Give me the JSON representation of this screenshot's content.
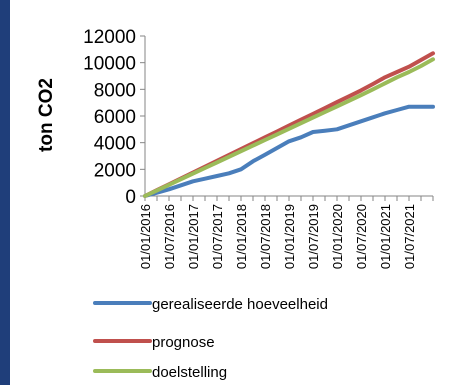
{
  "chart_data": {
    "type": "line",
    "title": "",
    "ylabel": "ton CO2",
    "xlabel": "",
    "ylim": [
      0,
      12000
    ],
    "yticks": [
      "0",
      "2000",
      "4000",
      "6000",
      "8000",
      "10000",
      "12000"
    ],
    "x_tick_labels": [
      "01/01/2016",
      "01/07/2016",
      "01/01/2017",
      "01/07/2017",
      "01/01/2018",
      "01/07/2018",
      "01/01/2019",
      "01/07/2019",
      "01/01/2020",
      "01/07/2020",
      "01/01/2021",
      "01/07/2021"
    ],
    "x": [
      "01/01/2016",
      "01/04/2016",
      "01/07/2016",
      "01/10/2016",
      "01/01/2017",
      "01/04/2017",
      "01/07/2017",
      "01/10/2017",
      "01/01/2018",
      "01/04/2018",
      "01/07/2018",
      "01/10/2018",
      "01/01/2019",
      "01/04/2019",
      "01/07/2019",
      "01/10/2019",
      "01/01/2020",
      "01/04/2020",
      "01/07/2020",
      "01/10/2020",
      "01/01/2021",
      "01/04/2021",
      "01/07/2021",
      "01/10/2021",
      "01/01/2022"
    ],
    "grid": false,
    "legend_position": "bottom",
    "series": [
      {
        "name": "gerealiseerde hoeveelheid",
        "color": "#4a7ebb",
        "values": [
          0,
          250,
          500,
          800,
          1100,
          1300,
          1500,
          1700,
          2000,
          2600,
          3100,
          3600,
          4100,
          4400,
          4800,
          4900,
          5000,
          5300,
          5600,
          5900,
          6200,
          6450,
          6700,
          6700,
          6700
        ]
      },
      {
        "name": "prognose",
        "color": "#c0504d",
        "values": [
          0,
          440,
          880,
          1320,
          1760,
          2200,
          2640,
          3080,
          3520,
          3960,
          4400,
          4840,
          5280,
          5720,
          6160,
          6600,
          7040,
          7480,
          7920,
          8400,
          8900,
          9300,
          9700,
          10200,
          10700
        ]
      },
      {
        "name": "doelstelling",
        "color": "#9bbb59",
        "values": [
          0,
          420,
          840,
          1260,
          1680,
          2100,
          2520,
          2940,
          3360,
          3780,
          4200,
          4620,
          5040,
          5460,
          5880,
          6300,
          6720,
          7140,
          7560,
          8000,
          8450,
          8900,
          9300,
          9750,
          10250
        ]
      }
    ]
  }
}
